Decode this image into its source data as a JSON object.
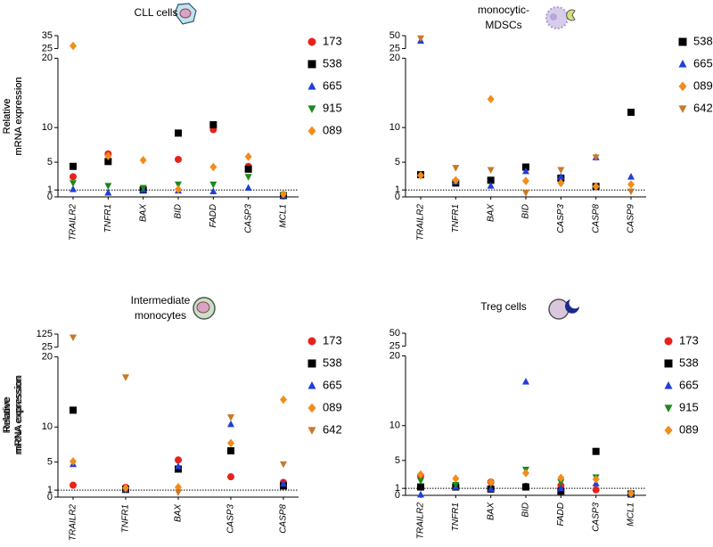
{
  "chart_data": [
    {
      "type": "dot",
      "title": [
        "CLL cells"
      ],
      "ylabel": [
        "Relative",
        "mRNA expression"
      ],
      "categories": [
        "TRAILR2",
        "TNFR1",
        "BAX",
        "BID",
        "FADD",
        "CASP3",
        "MCL1"
      ],
      "ylim": [
        0,
        35
      ],
      "ybreak": [
        20,
        25
      ],
      "yticks": [
        0,
        1,
        5,
        10,
        20,
        25,
        35
      ],
      "reference_line": 1,
      "series": [
        {
          "name": "173",
          "color": "#e8221b",
          "marker": "circle",
          "values": [
            2.9,
            6.2,
            1.1,
            5.4,
            9.7,
            4.4,
            0.3
          ]
        },
        {
          "name": "538",
          "color": "#000000",
          "marker": "square",
          "values": [
            4.4,
            5.1,
            1.0,
            9.2,
            10.4,
            4.0,
            0.2
          ]
        },
        {
          "name": "665",
          "color": "#1f3fd6",
          "marker": "triangle-up",
          "values": [
            1.1,
            0.6,
            1.0,
            0.9,
            0.8,
            1.3,
            0.2
          ]
        },
        {
          "name": "915",
          "color": "#1a8a1a",
          "marker": "triangle-down",
          "values": [
            2.0,
            1.6,
            1.3,
            1.8,
            1.8,
            2.9,
            0.3
          ]
        },
        {
          "name": "089",
          "color": "#f28c1c",
          "marker": "diamond",
          "values": [
            27,
            5.9,
            5.3,
            1.1,
            4.3,
            5.8,
            0.4
          ]
        }
      ]
    },
    {
      "type": "dot",
      "title": [
        "monocytic-",
        "MDSCs"
      ],
      "ylabel": [
        "Relative",
        "mRNA expression"
      ],
      "categories": [
        "TRAILR2",
        "TNFR1",
        "BAX",
        "BID",
        "CASP3",
        "CASP8",
        "CASP9"
      ],
      "ylim": [
        0,
        50
      ],
      "ybreak": [
        20,
        25
      ],
      "yticks": [
        0,
        1,
        5,
        10,
        20,
        25,
        50
      ],
      "reference_line": 1,
      "series": [
        {
          "name": "538",
          "color": "#000000",
          "marker": "square",
          "values": [
            3.2,
            2.0,
            2.4,
            4.3,
            2.7,
            1.5,
            12.2
          ]
        },
        {
          "name": "665",
          "color": "#1f3fd6",
          "marker": "triangle-up",
          "values": [
            40,
            2.2,
            1.6,
            3.7,
            2.9,
            5.7,
            2.9
          ]
        },
        {
          "name": "089",
          "color": "#f28c1c",
          "marker": "diamond",
          "values": [
            3.1,
            2.4,
            14.1,
            2.3,
            2.0,
            1.5,
            1.8
          ]
        },
        {
          "name": "642",
          "color": "#c8782a",
          "marker": "triangle-down",
          "values": [
            45,
            4.2,
            3.9,
            0.6,
            3.9,
            5.7,
            0.8
          ]
        }
      ]
    },
    {
      "type": "dot",
      "title": [
        "Intermediate",
        "monocytes"
      ],
      "ylabel": [
        "Relative",
        "mRNA expression"
      ],
      "categories": [
        "TRAILR2",
        "TNFR1",
        "BAX",
        "CASP3",
        "CASP8"
      ],
      "ylim": [
        0,
        125
      ],
      "ybreak": [
        20,
        25
      ],
      "yticks": [
        0,
        1,
        5,
        10,
        20,
        25,
        125
      ],
      "reference_line": 1,
      "series": [
        {
          "name": "173",
          "color": "#e8221b",
          "marker": "circle",
          "values": [
            1.7,
            1.4,
            5.3,
            2.9,
            2.1
          ]
        },
        {
          "name": "538",
          "color": "#000000",
          "marker": "square",
          "values": [
            12.4,
            1.1,
            4.0,
            6.6,
            1.6
          ]
        },
        {
          "name": "665",
          "color": "#1f3fd6",
          "marker": "triangle-up",
          "values": [
            4.7,
            1.1,
            4.4,
            10.4,
            1.9
          ]
        },
        {
          "name": "089",
          "color": "#f28c1c",
          "marker": "diamond",
          "values": [
            5.1,
            1.3,
            1.4,
            7.7,
            13.9
          ]
        },
        {
          "name": "642",
          "color": "#c8782a",
          "marker": "triangle-down",
          "values": [
            100,
            17.1,
            0.7,
            11.4,
            4.7
          ]
        }
      ]
    },
    {
      "type": "dot",
      "title": [
        "Treg cells"
      ],
      "ylabel": [
        "Relative",
        "mRNA expression"
      ],
      "categories": [
        "TRAILR2",
        "TNFR1",
        "BAX",
        "BID",
        "FADD",
        "CASP3",
        "MCL1"
      ],
      "ylim": [
        0,
        50
      ],
      "ybreak": [
        20,
        25
      ],
      "yticks": [
        0,
        1,
        5,
        10,
        20,
        25,
        50
      ],
      "reference_line": 1,
      "series": [
        {
          "name": "173",
          "color": "#e8221b",
          "marker": "circle",
          "values": [
            2.8,
            1.4,
            1.9,
            1.3,
            1.4,
            0.8,
            0.2
          ]
        },
        {
          "name": "538",
          "color": "#000000",
          "marker": "square",
          "values": [
            1.2,
            1.2,
            0.9,
            1.2,
            0.6,
            6.3,
            0.2
          ]
        },
        {
          "name": "665",
          "color": "#1f3fd6",
          "marker": "triangle-up",
          "values": [
            0.1,
            1.2,
            0.9,
            16.3,
            1.0,
            1.7,
            0.2
          ]
        },
        {
          "name": "915",
          "color": "#1a8a1a",
          "marker": "triangle-down",
          "values": [
            2.1,
            1.5,
            1.7,
            3.7,
            1.9,
            2.6,
            0.2
          ]
        },
        {
          "name": "089",
          "color": "#f28c1c",
          "marker": "diamond",
          "values": [
            3.0,
            2.4,
            1.9,
            3.2,
            2.5,
            2.3,
            0.3
          ]
        }
      ]
    }
  ]
}
